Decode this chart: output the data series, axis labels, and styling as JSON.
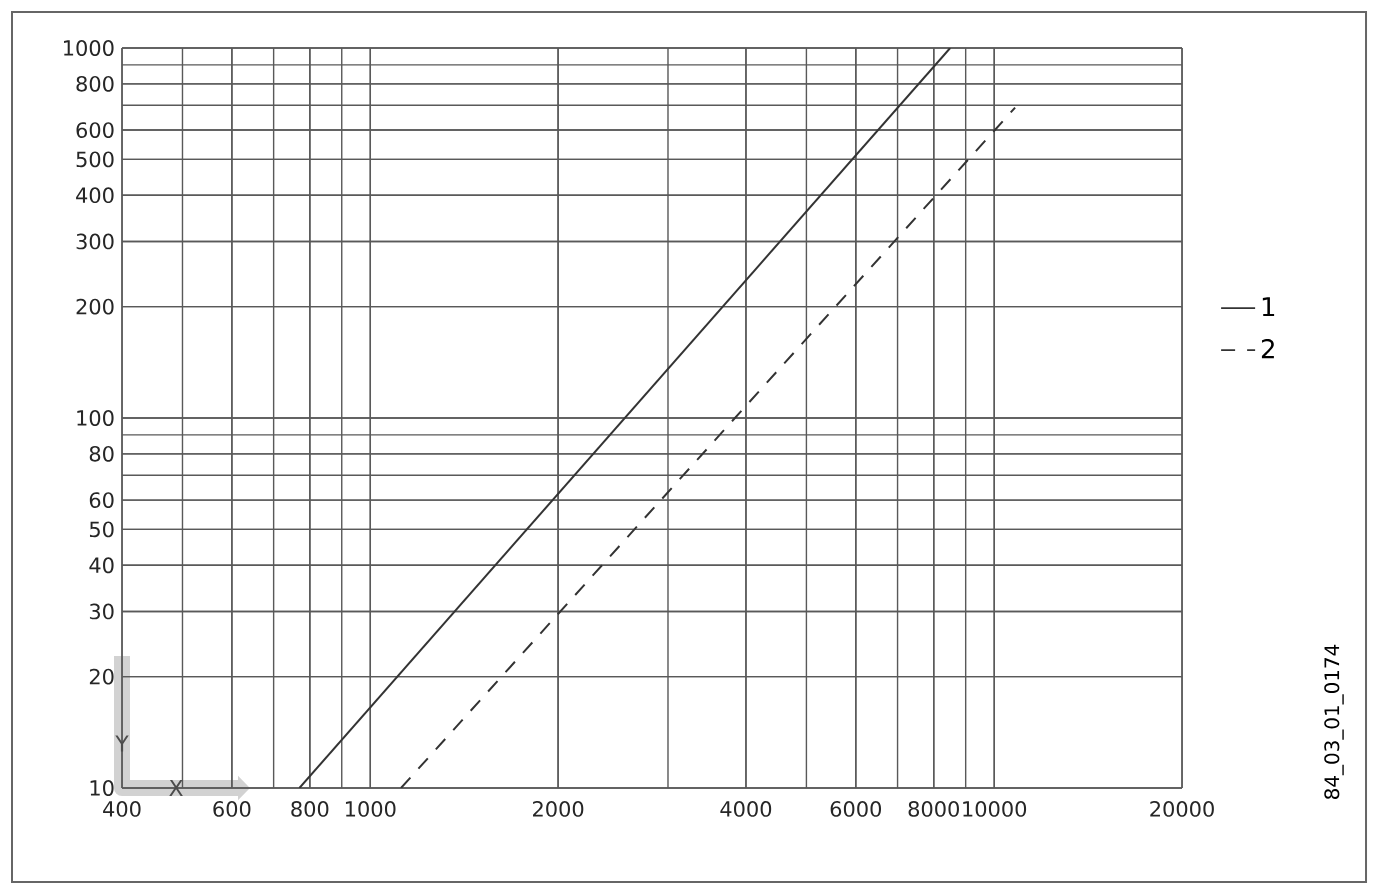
{
  "chart_data": {
    "type": "line",
    "xlabel": "X",
    "ylabel": "Y",
    "log": "xy",
    "xlim": [
      400,
      20000
    ],
    "ylim": [
      10,
      1000
    ],
    "xticks": [
      400,
      600,
      800,
      1000,
      2000,
      4000,
      6000,
      8000,
      10000,
      20000
    ],
    "yticks": [
      10,
      20,
      30,
      40,
      50,
      60,
      80,
      100,
      200,
      300,
      400,
      500,
      600,
      800,
      1000
    ],
    "grid": true,
    "legend": "right",
    "annotations": [
      "84_03_01_0174"
    ],
    "series": [
      {
        "name": "1",
        "color": "#333333",
        "line_style": "solid",
        "x": [
          770,
          8500
        ],
        "values": [
          10,
          1000
        ]
      },
      {
        "name": "2",
        "color": "#333333",
        "line_style": "dashed",
        "x": [
          1120,
          10800
        ],
        "values": [
          10,
          690
        ]
      }
    ]
  }
}
